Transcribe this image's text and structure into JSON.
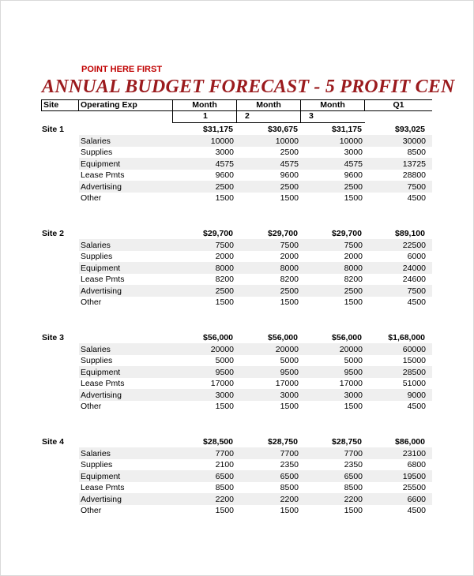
{
  "note": "POINT HERE FIRST",
  "title": "ANNUAL BUDGET FORECAST - 5 PROFIT CEN",
  "header": {
    "site": "Site",
    "operating": "Operating Exp",
    "months": [
      "Month",
      "Month",
      "Month",
      "Q1"
    ],
    "subnums": [
      "1",
      "2",
      "3"
    ]
  },
  "sites": [
    {
      "name": "Site 1",
      "totals": [
        "$31,175",
        "$30,675",
        "$31,175",
        "$93,025"
      ],
      "rows": [
        {
          "label": "Salaries",
          "values": [
            "10000",
            "10000",
            "10000",
            "30000"
          ]
        },
        {
          "label": "Supplies",
          "values": [
            "3000",
            "2500",
            "3000",
            "8500"
          ]
        },
        {
          "label": "Equipment",
          "values": [
            "4575",
            "4575",
            "4575",
            "13725"
          ]
        },
        {
          "label": "Lease Pmts",
          "values": [
            "9600",
            "9600",
            "9600",
            "28800"
          ]
        },
        {
          "label": "Advertising",
          "values": [
            "2500",
            "2500",
            "2500",
            "7500"
          ]
        },
        {
          "label": "Other",
          "values": [
            "1500",
            "1500",
            "1500",
            "4500"
          ]
        }
      ]
    },
    {
      "name": "Site 2",
      "totals": [
        "$29,700",
        "$29,700",
        "$29,700",
        "$89,100"
      ],
      "rows": [
        {
          "label": "Salaries",
          "values": [
            "7500",
            "7500",
            "7500",
            "22500"
          ]
        },
        {
          "label": "Supplies",
          "values": [
            "2000",
            "2000",
            "2000",
            "6000"
          ]
        },
        {
          "label": "Equipment",
          "values": [
            "8000",
            "8000",
            "8000",
            "24000"
          ]
        },
        {
          "label": "Lease Pmts",
          "values": [
            "8200",
            "8200",
            "8200",
            "24600"
          ]
        },
        {
          "label": "Advertising",
          "values": [
            "2500",
            "2500",
            "2500",
            "7500"
          ]
        },
        {
          "label": "Other",
          "values": [
            "1500",
            "1500",
            "1500",
            "4500"
          ]
        }
      ]
    },
    {
      "name": "Site 3",
      "totals": [
        "$56,000",
        "$56,000",
        "$56,000",
        "$1,68,000"
      ],
      "rows": [
        {
          "label": "Salaries",
          "values": [
            "20000",
            "20000",
            "20000",
            "60000"
          ]
        },
        {
          "label": "Supplies",
          "values": [
            "5000",
            "5000",
            "5000",
            "15000"
          ]
        },
        {
          "label": "Equipment",
          "values": [
            "9500",
            "9500",
            "9500",
            "28500"
          ]
        },
        {
          "label": "Lease Pmts",
          "values": [
            "17000",
            "17000",
            "17000",
            "51000"
          ]
        },
        {
          "label": "Advertising",
          "values": [
            "3000",
            "3000",
            "3000",
            "9000"
          ]
        },
        {
          "label": "Other",
          "values": [
            "1500",
            "1500",
            "1500",
            "4500"
          ]
        }
      ]
    },
    {
      "name": "Site 4",
      "totals": [
        "$28,500",
        "$28,750",
        "$28,750",
        "$86,000"
      ],
      "rows": [
        {
          "label": "Salaries",
          "values": [
            "7700",
            "7700",
            "7700",
            "23100"
          ]
        },
        {
          "label": "Supplies",
          "values": [
            "2100",
            "2350",
            "2350",
            "6800"
          ]
        },
        {
          "label": "Equipment",
          "values": [
            "6500",
            "6500",
            "6500",
            "19500"
          ]
        },
        {
          "label": "Lease Pmts",
          "values": [
            "8500",
            "8500",
            "8500",
            "25500"
          ]
        },
        {
          "label": "Advertising",
          "values": [
            "2200",
            "2200",
            "2200",
            "6600"
          ]
        },
        {
          "label": "Other",
          "values": [
            "1500",
            "1500",
            "1500",
            "4500"
          ]
        }
      ]
    }
  ]
}
